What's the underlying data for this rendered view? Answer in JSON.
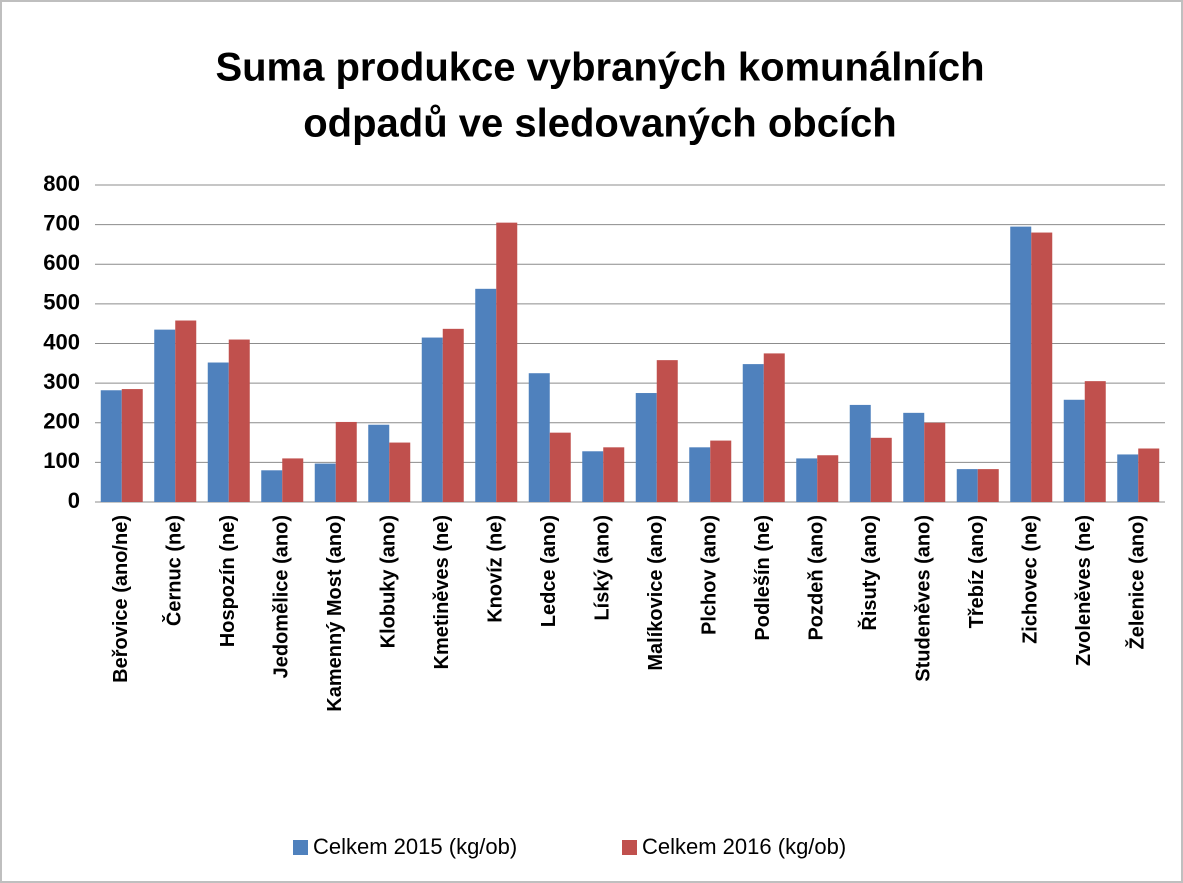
{
  "chart_data": {
    "type": "bar",
    "title": [
      "Suma produkce vybraných komunálních",
      "odpadů ve sledovaných obcích"
    ],
    "categories": [
      "Beřovice (ano/ne)",
      "Černuc (ne)",
      "Hospozín (ne)",
      "Jedomělice (ano)",
      "Kamenný Most (ano)",
      "Klobuky (ano)",
      "Kmetiněves (ne)",
      "Knovíz (ne)",
      "Ledce (ano)",
      "Líský (ano)",
      "Malíkovice (ano)",
      "Plchov (ano)",
      "Podlešín (ne)",
      "Pozdeň (ano)",
      "Řisuty (ano)",
      "Studeněves (ano)",
      "Třebíz (ano)",
      "Zichovec (ne)",
      "Zvoleněves (ne)",
      "Želenice (ano)"
    ],
    "series": [
      {
        "name": "Celkem 2015 (kg/ob)",
        "color": "#4f81bd",
        "values": [
          282,
          435,
          352,
          80,
          97,
          195,
          415,
          538,
          325,
          128,
          275,
          138,
          348,
          110,
          245,
          225,
          83,
          695,
          258,
          120
        ]
      },
      {
        "name": "Celkem 2016 (kg/ob)",
        "color": "#c0504d",
        "values": [
          285,
          458,
          410,
          110,
          202,
          150,
          437,
          705,
          175,
          138,
          358,
          155,
          375,
          118,
          162,
          200,
          83,
          680,
          305,
          135
        ]
      }
    ],
    "ylim": [
      0,
      800
    ],
    "yticks": [
      0,
      100,
      200,
      300,
      400,
      500,
      600,
      700,
      800
    ],
    "grid": true,
    "legend": "bottom"
  }
}
